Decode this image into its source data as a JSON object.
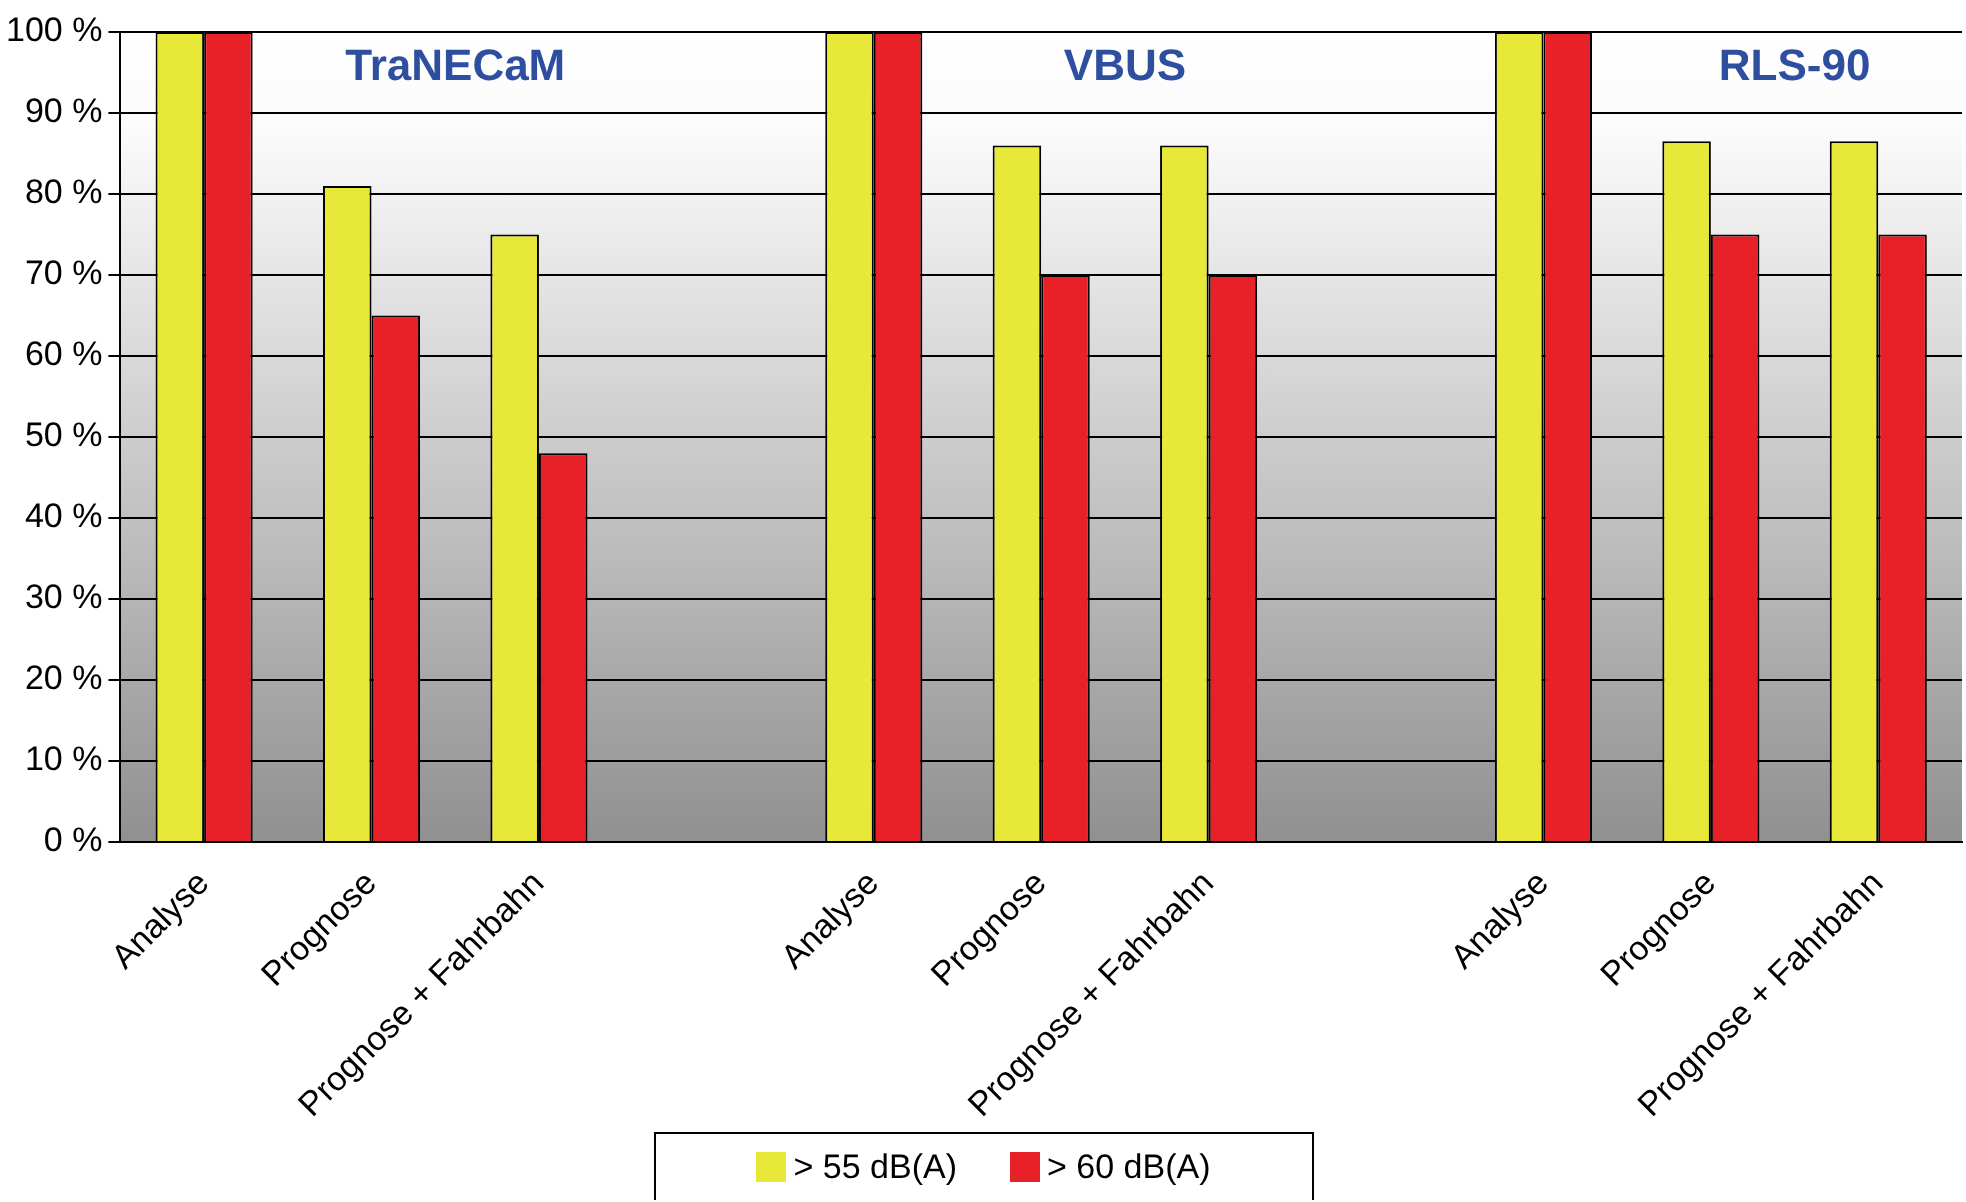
{
  "chart_data": {
    "type": "bar",
    "categories": [
      "Analyse",
      "Prognose",
      "Prognose + Fahrbahn",
      null,
      "Analyse",
      "Prognose",
      "Prognose + Fahrbahn",
      null,
      "Analyse",
      "Prognose",
      "Prognose + Fahrbahn"
    ],
    "series": [
      {
        "name": "> 55 dB(A)",
        "color": "#e8e838",
        "values": [
          100,
          81,
          75,
          null,
          100,
          86,
          86,
          null,
          100,
          86.5,
          86.5
        ]
      },
      {
        "name": "> 60 dB(A)",
        "color": "#e82028",
        "values": [
          100,
          65,
          48,
          null,
          100,
          70,
          70,
          null,
          100,
          75,
          75
        ]
      }
    ],
    "ylim": [
      0,
      100
    ],
    "yticks": [
      {
        "value": 0,
        "label": "0 %"
      },
      {
        "value": 10,
        "label": "10 %"
      },
      {
        "value": 20,
        "label": "20 %"
      },
      {
        "value": 30,
        "label": "30 %"
      },
      {
        "value": 40,
        "label": "40 %"
      },
      {
        "value": 50,
        "label": "50 %"
      },
      {
        "value": 60,
        "label": "60 %"
      },
      {
        "value": 70,
        "label": "70 %"
      },
      {
        "value": 80,
        "label": "80 %"
      },
      {
        "value": 90,
        "label": "90 %"
      },
      {
        "value": 100,
        "label": "100 %"
      }
    ],
    "annotations": [
      "TraNECaM",
      "VBUS",
      "RLS-90"
    ],
    "grid": "y",
    "legend": "bottom"
  }
}
